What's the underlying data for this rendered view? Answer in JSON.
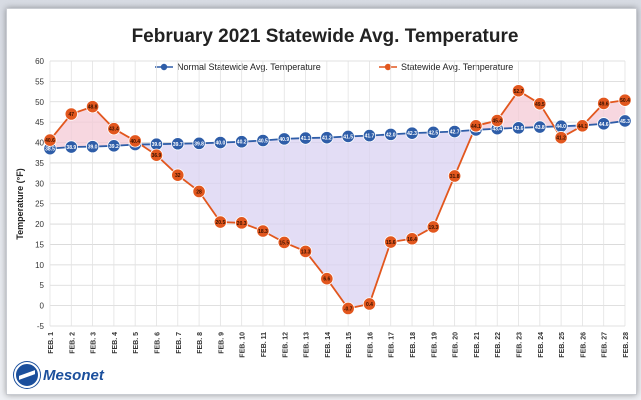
{
  "chart_data": {
    "type": "line",
    "title": "February 2021 Statewide Avg. Temperature",
    "ylabel": "Temperature (°F)",
    "xlabel": "",
    "ylim": [
      -5,
      60
    ],
    "yticks": [
      -5,
      0,
      5,
      10,
      15,
      20,
      25,
      30,
      35,
      40,
      45,
      50,
      55,
      60
    ],
    "grid": true,
    "legend": "top",
    "categories": [
      "FEB. 1",
      "FEB. 2",
      "FEB. 3",
      "FEB. 4",
      "FEB. 5",
      "FEB. 6",
      "FEB. 7",
      "FEB. 8",
      "FEB. 9",
      "FEB. 10",
      "FEB. 11",
      "FEB. 12",
      "FEB. 13",
      "FEB. 14",
      "FEB. 15",
      "FEB. 16",
      "FEB. 17",
      "FEB. 18",
      "FEB. 19",
      "FEB. 20",
      "FEB. 21",
      "FEB. 22",
      "FEB. 23",
      "FEB. 24",
      "FEB. 25",
      "FEB. 26",
      "FEB. 27",
      "FEB. 28"
    ],
    "series": [
      {
        "name": "Normal Statewide Avg. Temperature",
        "color": "#2e5da8",
        "values": [
          38.5,
          38.9,
          39.0,
          39.2,
          39.5,
          39.6,
          39.7,
          39.8,
          40.0,
          40.2,
          40.5,
          40.9,
          41.1,
          41.2,
          41.5,
          41.7,
          42.0,
          42.3,
          42.5,
          42.7,
          43.1,
          43.4,
          43.6,
          43.8,
          44.0,
          44.2,
          44.6,
          45.3
        ],
        "labels": [
          "38.5",
          "38.9",
          "39.0",
          "39.2",
          "39.5",
          "39.6",
          "39.7",
          "39.8",
          "40.0",
          "40.2",
          "40.5",
          "40.9",
          "41.1",
          "41.2",
          "41.5",
          "41.7",
          "42.0",
          "42.3",
          "42.5",
          "42.7",
          "43.1",
          "43.4",
          "43.6",
          "43.8",
          "44.0",
          "44.2",
          "44.6",
          "45.3"
        ]
      },
      {
        "name": "Statewide Avg. Temperature",
        "color": "#e2571e",
        "values": [
          40.6,
          47,
          48.8,
          43.4,
          40.4,
          36.9,
          32,
          28,
          20.5,
          20.3,
          18.3,
          15.5,
          13.3,
          6.6,
          -0.7,
          0.4,
          15.6,
          16.4,
          19.3,
          31.8,
          44.1,
          45.4,
          52.7,
          49.5,
          41.2,
          44.1,
          49.6,
          50.4
        ],
        "labels": [
          "40.6",
          "47",
          "48.8",
          "43.4",
          "40.4",
          "36.9",
          "32",
          "28",
          "20.5",
          "20.3",
          "18.3",
          "15.5",
          "13.3",
          "6.6",
          "-0.7",
          "0.4",
          "15.6",
          "16.4",
          "19.3",
          "31.8",
          "44.1",
          "45.4",
          "52.7",
          "49.5",
          "41.2",
          "44.1",
          "49.6",
          "50.4"
        ]
      }
    ],
    "fill_above_color": "#f4c9d6",
    "fill_below_color": "#d9d2f2"
  },
  "branding": {
    "logo_text": "Mesonet"
  }
}
